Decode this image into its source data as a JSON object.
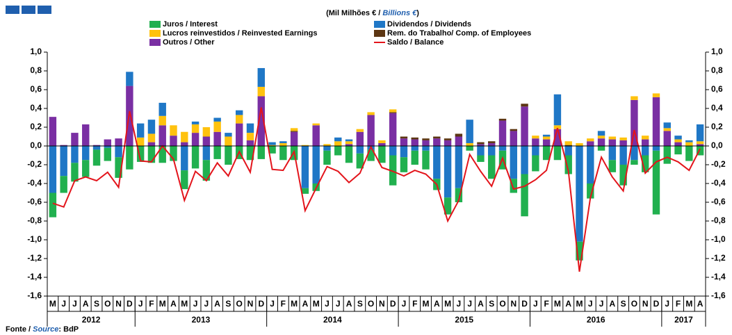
{
  "chart_data": {
    "type": "bar",
    "subtitle": {
      "prefix": "(Mil Milhões € / ",
      "italic": "Billions €",
      "suffix": ")"
    },
    "source": {
      "prefix": "Fonte / ",
      "italic": "Source",
      "suffix": ": BdP"
    },
    "categories": [
      "M",
      "J",
      "J",
      "A",
      "S",
      "O",
      "N",
      "D",
      "J",
      "F",
      "M",
      "A",
      "M",
      "J",
      "J",
      "A",
      "S",
      "O",
      "N",
      "D",
      "J",
      "F",
      "M",
      "A",
      "M",
      "J",
      "J",
      "A",
      "S",
      "O",
      "N",
      "D",
      "J",
      "F",
      "M",
      "A",
      "M",
      "J",
      "J",
      "A",
      "S",
      "O",
      "N",
      "D",
      "J",
      "F",
      "M",
      "A",
      "M",
      "J",
      "J",
      "A",
      "S",
      "O",
      "N",
      "D",
      "J",
      "F",
      "M",
      "A"
    ],
    "year_labels": [
      "2012",
      null,
      null,
      null,
      null,
      null,
      null,
      null,
      "2013",
      null,
      null,
      null,
      null,
      null,
      null,
      null,
      null,
      null,
      null,
      null,
      "2014",
      null,
      null,
      null,
      null,
      null,
      null,
      null,
      null,
      null,
      null,
      null,
      "2015",
      null,
      null,
      null,
      null,
      null,
      null,
      null,
      null,
      null,
      null,
      null,
      "2016",
      null,
      null,
      null,
      null,
      null,
      null,
      null,
      null,
      null,
      null,
      null,
      "2017",
      null,
      null,
      null
    ],
    "series": [
      {
        "name": "Juros / Interest",
        "color": "#21b04f",
        "values": [
          -0.26,
          -0.18,
          -0.2,
          -0.18,
          -0.17,
          -0.14,
          -0.22,
          -0.25,
          -0.17,
          -0.18,
          -0.18,
          -0.16,
          -0.2,
          -0.24,
          -0.22,
          -0.14,
          -0.2,
          -0.14,
          -0.15,
          -0.14,
          -0.08,
          -0.15,
          -0.15,
          -0.06,
          -0.08,
          -0.15,
          -0.1,
          -0.18,
          -0.16,
          -0.12,
          -0.18,
          -0.32,
          -0.16,
          -0.15,
          -0.2,
          -0.12,
          -0.18,
          -0.15,
          -0.05,
          -0.07,
          -0.25,
          -0.2,
          -0.15,
          -0.45,
          -0.17,
          -0.15,
          -0.15,
          -0.2,
          -0.2,
          -0.16,
          -0.05,
          -0.13,
          -0.22,
          -0.05,
          -0.18,
          -0.68,
          -0.19,
          -0.09,
          -0.16,
          -0.1
        ]
      },
      {
        "name": "Dividendos / Dividends",
        "color": "#1f77c6",
        "values": [
          -0.5,
          -0.32,
          -0.18,
          -0.15,
          -0.04,
          -0.02,
          -0.12,
          0.15,
          0.15,
          0.15,
          0.14,
          0,
          -0.26,
          0.03,
          -0.15,
          0.04,
          0.04,
          0.05,
          0.1,
          0.2,
          0.03,
          0.02,
          0,
          -0.45,
          -0.4,
          -0.05,
          0.04,
          0.02,
          -0.08,
          -0.04,
          0,
          -0.1,
          -0.12,
          -0.05,
          -0.05,
          -0.35,
          -0.55,
          -0.45,
          0.25,
          -0.1,
          -0.1,
          -0.05,
          -0.35,
          -0.3,
          -0.1,
          0.02,
          0.33,
          -0.1,
          -1.02,
          -0.4,
          0.05,
          -0.15,
          -0.2,
          -0.15,
          -0.1,
          -0.05,
          0.06,
          0.04,
          0.02,
          0.18
        ]
      },
      {
        "name": "Lucros reinvestidos / Reinvested Earnings",
        "color": "#ffc20e",
        "values": [
          0,
          0,
          0,
          0,
          0,
          0,
          0,
          0,
          0.09,
          0.09,
          0.1,
          0.11,
          0.11,
          0.09,
          0.1,
          0.11,
          0.1,
          0.09,
          0.08,
          0.1,
          0.01,
          0.03,
          0.03,
          0.01,
          0.02,
          0.02,
          0.05,
          0.03,
          0.03,
          0.03,
          0.03,
          0.03,
          0,
          0,
          0,
          0,
          0,
          0,
          0.03,
          0,
          0,
          0,
          0,
          0,
          0.03,
          0.03,
          0.04,
          0.04,
          0.03,
          0.03,
          0.03,
          0.03,
          0.03,
          0.04,
          0.04,
          0.04,
          0.03,
          0.03,
          0.04,
          0.03
        ]
      },
      {
        "name": "Rem. do Trabalho/ Comp. of Employees",
        "color": "#5c3613",
        "values": [
          0,
          0,
          0,
          0,
          0,
          0,
          0,
          0,
          0,
          0,
          0,
          0,
          0,
          0,
          0,
          0,
          0,
          0,
          0,
          0,
          0,
          0,
          0.01,
          0,
          0,
          0,
          0,
          0,
          0,
          0,
          0,
          0.01,
          0.02,
          0.02,
          0.02,
          0.02,
          0.02,
          0.03,
          0,
          0.02,
          0.02,
          0.02,
          0.02,
          0.03,
          0,
          0,
          0,
          0.01,
          0,
          0,
          0,
          0,
          0,
          0,
          0,
          0,
          0,
          0,
          0,
          0
        ]
      },
      {
        "name": "Outros / Other",
        "color": "#7a2fa3",
        "values": [
          0.31,
          0.01,
          0.14,
          0.23,
          0.01,
          0.07,
          0.08,
          0.64,
          0,
          0.04,
          0.22,
          0.11,
          0.04,
          0.14,
          0.1,
          0.15,
          0,
          0.24,
          0.06,
          0.53,
          0,
          0,
          0.15,
          0,
          0.22,
          0,
          0,
          0.02,
          0.15,
          0.33,
          0.03,
          0.35,
          0.08,
          0.07,
          0.06,
          0.08,
          0.06,
          0.1,
          0,
          0.02,
          0.03,
          0.27,
          0.16,
          0.42,
          0.08,
          0.07,
          0.18,
          0,
          0,
          0.05,
          0.08,
          0.07,
          0.06,
          0.49,
          0.07,
          0.52,
          0.16,
          0.04,
          0,
          0.02
        ]
      },
      {
        "name": "Saldo / Balance",
        "color": "#e3141b",
        "mark": "line",
        "values": [
          -0.61,
          -0.65,
          -0.37,
          -0.33,
          -0.37,
          -0.28,
          -0.44,
          0.37,
          -0.16,
          -0.17,
          0,
          -0.14,
          -0.58,
          -0.27,
          -0.37,
          -0.18,
          -0.32,
          -0.06,
          -0.28,
          0.41,
          -0.25,
          -0.26,
          -0.06,
          -0.69,
          -0.45,
          -0.22,
          -0.27,
          -0.39,
          -0.29,
          -0.01,
          -0.23,
          -0.27,
          -0.32,
          -0.26,
          -0.3,
          -0.41,
          -0.8,
          -0.58,
          -0.09,
          -0.27,
          -0.43,
          -0.13,
          -0.46,
          -0.43,
          -0.36,
          -0.26,
          0.19,
          -0.27,
          -1.34,
          -0.55,
          -0.12,
          -0.33,
          -0.48,
          0.17,
          -0.29,
          -0.17,
          -0.12,
          -0.17,
          -0.26,
          -0.03
        ]
      }
    ],
    "ylim": [
      -1.6,
      1.0
    ],
    "yticks": [
      {
        "value": -1.6,
        "label": "-1,6"
      },
      {
        "value": -1.4,
        "label": "-1,4"
      },
      {
        "value": -1.2,
        "label": "-1,2"
      },
      {
        "value": -1.0,
        "label": "-1,0"
      },
      {
        "value": -0.8,
        "label": "-0,8"
      },
      {
        "value": -0.6,
        "label": "-0,6"
      },
      {
        "value": -0.4,
        "label": "-0,4"
      },
      {
        "value": -0.2,
        "label": "-0,2"
      },
      {
        "value": 0,
        "label": "0,0"
      },
      {
        "value": 0.2,
        "label": "0,2"
      },
      {
        "value": 0.4,
        "label": "0,4"
      },
      {
        "value": 0.6,
        "label": "0,6"
      },
      {
        "value": 0.8,
        "label": "0,8"
      },
      {
        "value": 1.0,
        "label": "1,0"
      }
    ]
  }
}
